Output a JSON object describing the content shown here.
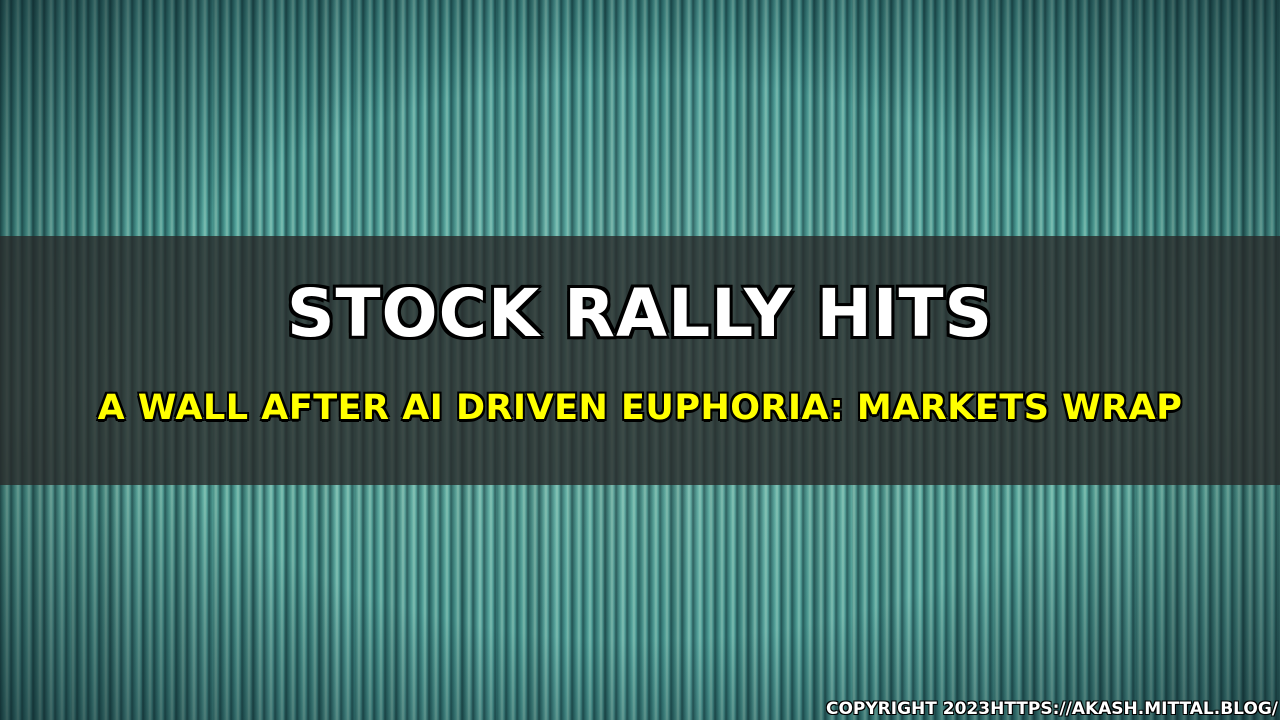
{
  "headline": {
    "title": "STOCK RALLY HITS",
    "subtitle": "A WALL AFTER AI DRIVEN EUPHORIA: MARKETS WRAP"
  },
  "footer": {
    "copyright": "COPYRIGHT 2023HTTPS://AKASH.MITTAL.BLOG/"
  },
  "colors": {
    "title": "#ffffff",
    "subtitle": "#ffff00",
    "banner": "#282828",
    "background": "#3f8e8a"
  }
}
